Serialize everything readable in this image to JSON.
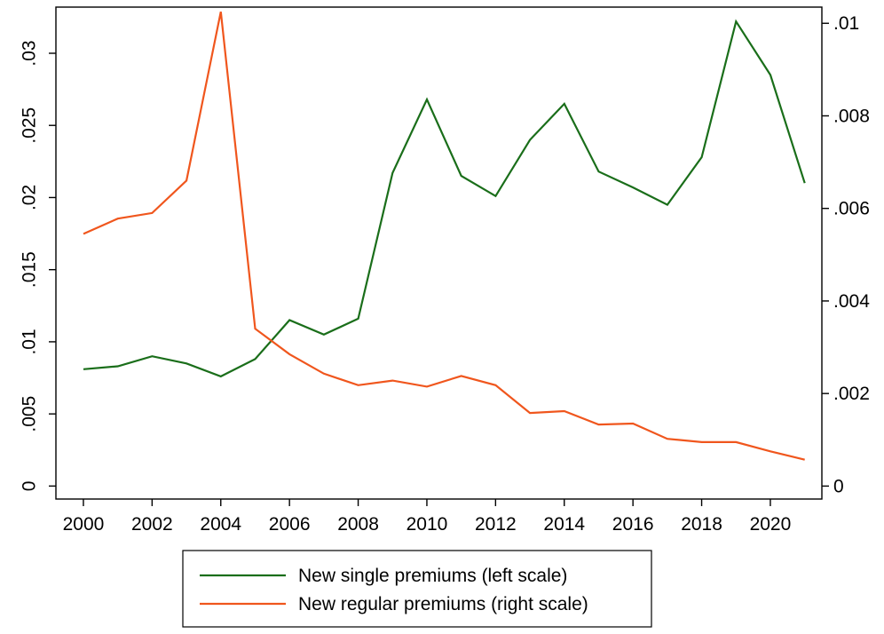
{
  "chart_data": {
    "type": "line",
    "title": "",
    "xlabel": "",
    "ylabel_left": "",
    "ylabel_right": "",
    "x": [
      2000,
      2001,
      2002,
      2003,
      2004,
      2005,
      2006,
      2007,
      2008,
      2009,
      2010,
      2011,
      2012,
      2013,
      2014,
      2015,
      2016,
      2017,
      2018,
      2019,
      2020,
      2021
    ],
    "x_ticks": [
      2000,
      2002,
      2004,
      2006,
      2008,
      2010,
      2012,
      2014,
      2016,
      2018,
      2020
    ],
    "x_tick_labels": [
      "2000",
      "2002",
      "2004",
      "2006",
      "2008",
      "2010",
      "2012",
      "2014",
      "2016",
      "2018",
      "2020"
    ],
    "xlim": [
      1999.2,
      2021.5
    ],
    "y_left": {
      "lim": [
        -0.0009,
        0.0332
      ],
      "ticks": [
        0,
        0.005,
        0.01,
        0.015,
        0.02,
        0.025,
        0.03
      ],
      "tick_labels": [
        "0",
        ".005",
        ".01",
        ".015",
        ".02",
        ".025",
        ".03"
      ]
    },
    "y_right": {
      "lim": [
        -0.00028,
        0.01035
      ],
      "ticks": [
        0,
        0.002,
        0.004,
        0.006,
        0.008,
        0.01
      ],
      "tick_labels": [
        "0",
        ".002",
        ".004",
        ".006",
        ".008",
        ".01"
      ]
    },
    "series": [
      {
        "name": "New single premiums (left scale)",
        "axis": "left",
        "color": "#1a6e1a",
        "values": [
          0.0081,
          0.0083,
          0.009,
          0.0085,
          0.0076,
          0.0088,
          0.0115,
          0.0105,
          0.0116,
          0.0217,
          0.0268,
          0.0215,
          0.0201,
          0.024,
          0.0265,
          0.0218,
          0.0207,
          0.0195,
          0.0228,
          0.0322,
          0.0285,
          0.021
        ]
      },
      {
        "name": "New regular premiums (right scale)",
        "axis": "right",
        "color": "#f0561d",
        "values": [
          0.00545,
          0.00578,
          0.0059,
          0.0066,
          0.01025,
          0.0034,
          0.00285,
          0.00243,
          0.00218,
          0.00228,
          0.00215,
          0.00238,
          0.00218,
          0.00158,
          0.00162,
          0.00133,
          0.00135,
          0.00102,
          0.00095,
          0.00095,
          0.00075,
          0.00057
        ]
      }
    ],
    "grid": false,
    "legend_position": "bottom"
  }
}
